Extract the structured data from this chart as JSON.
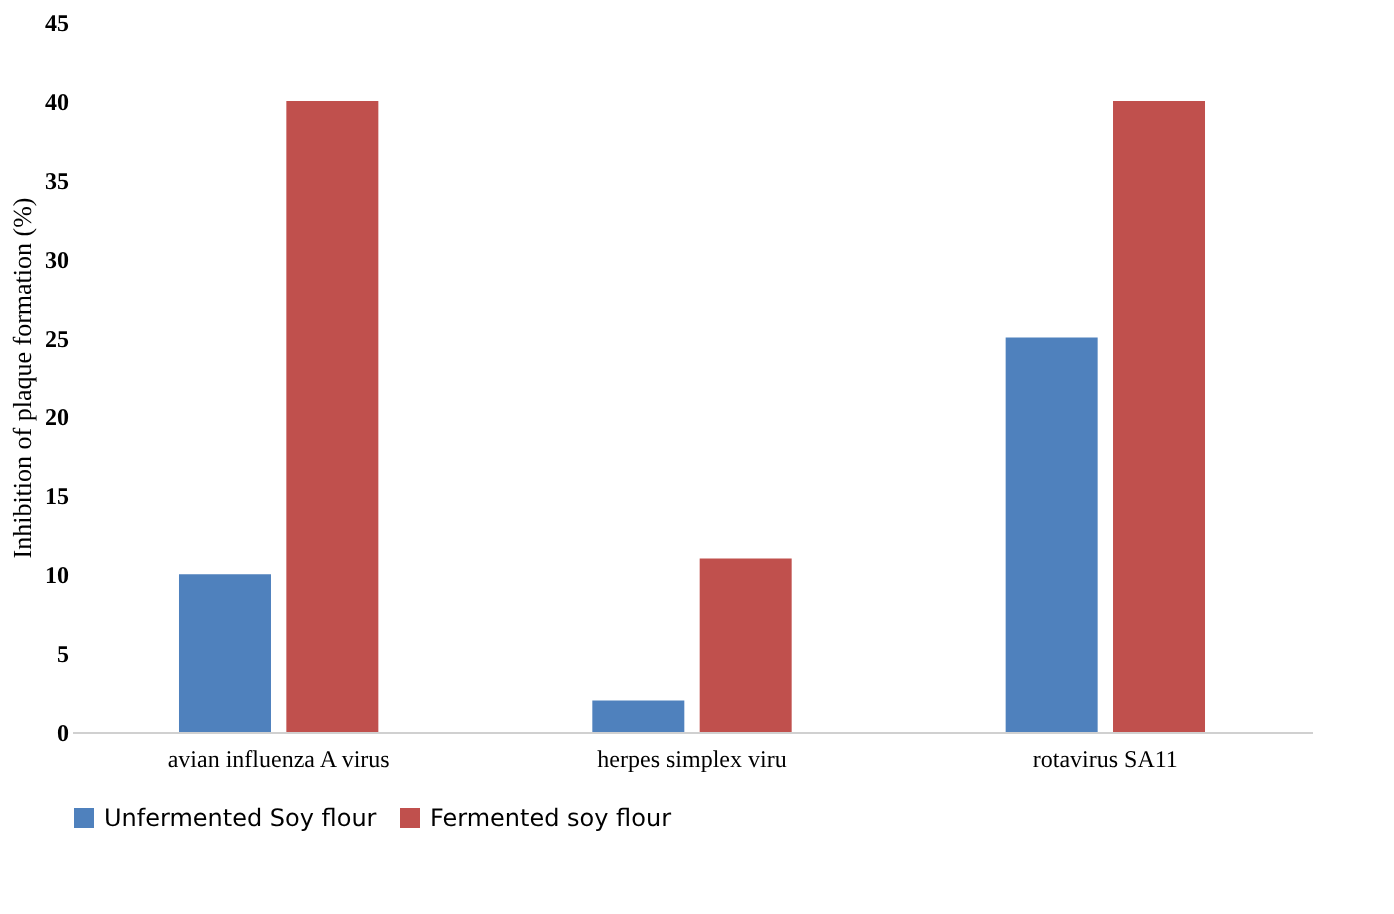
{
  "chart_data": {
    "type": "bar",
    "ylabel": "Inhibition of plaque formation (%)",
    "categories": [
      "avian influenza A virus",
      "herpes simplex viru",
      "rotavirus SA11"
    ],
    "series": [
      {
        "name": "Unfermented Soy flour",
        "color": "#4f81bd",
        "values": [
          10,
          2,
          25
        ]
      },
      {
        "name": "Fermented soy flour",
        "color": "#c0504d",
        "values": [
          40,
          11,
          40
        ]
      }
    ],
    "ylim": [
      0,
      45
    ],
    "yticks": [
      0,
      5,
      10,
      15,
      20,
      25,
      30,
      35,
      40,
      45
    ],
    "grid": false,
    "legend": "bottom"
  }
}
